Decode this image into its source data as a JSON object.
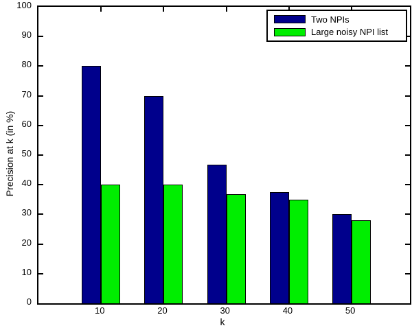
{
  "chart_data": {
    "type": "bar",
    "title": "",
    "xlabel": "k",
    "ylabel": "Precision at k (in %)",
    "categories": [
      10,
      20,
      30,
      40,
      50
    ],
    "series": [
      {
        "name": "Two NPIs",
        "color": "#00008C",
        "values": [
          80,
          70,
          46.7,
          37.5,
          30
        ]
      },
      {
        "name": "Large noisy NPI list",
        "color": "#00EE00",
        "values": [
          40,
          40,
          36.7,
          35.0,
          28
        ]
      }
    ],
    "ylim": [
      0,
      100
    ],
    "yticks": [
      0,
      10,
      20,
      30,
      40,
      50,
      60,
      70,
      80,
      90,
      100
    ],
    "grid": false,
    "legend_position": "top-right",
    "bar_edge_color": "#000000",
    "axis_color": "#000000",
    "background": "#ffffff"
  }
}
